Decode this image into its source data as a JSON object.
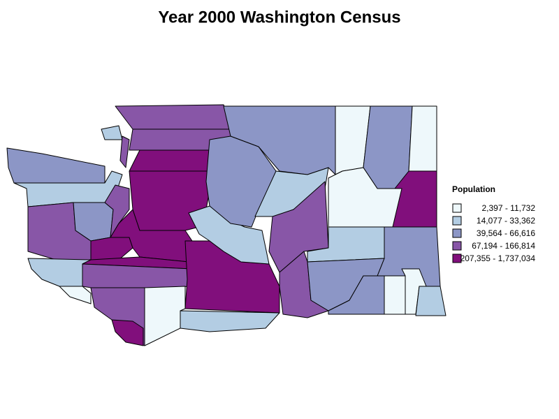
{
  "title": "Year 2000 Washington Census",
  "legend": {
    "title": "Population",
    "items": [
      {
        "label": "2,397 - 11,732",
        "color": "#eef8fb"
      },
      {
        "label": "14,077 - 33,362",
        "color": "#b3cde3"
      },
      {
        "label": "39,564 - 66,616",
        "color": "#8c96c6"
      },
      {
        "label": "67,194 - 166,814",
        "color": "#8856a7"
      },
      {
        "label": "207,355 - 1,737,034",
        "color": "#810f7c"
      }
    ]
  }
}
